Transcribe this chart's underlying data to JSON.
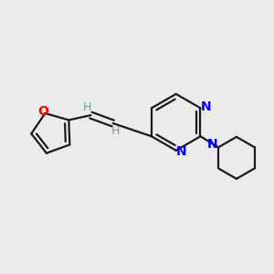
{
  "background_color": "#ebebeb",
  "bond_color": "#1a1a1a",
  "nitrogen_color": "#0000ff",
  "oxygen_color": "#ff0000",
  "hydrogen_color": "#6fa0a0",
  "line_width": 1.6,
  "figsize": [
    3.0,
    3.0
  ],
  "dpi": 100,
  "xlim": [
    0,
    10
  ],
  "ylim": [
    0,
    10
  ]
}
